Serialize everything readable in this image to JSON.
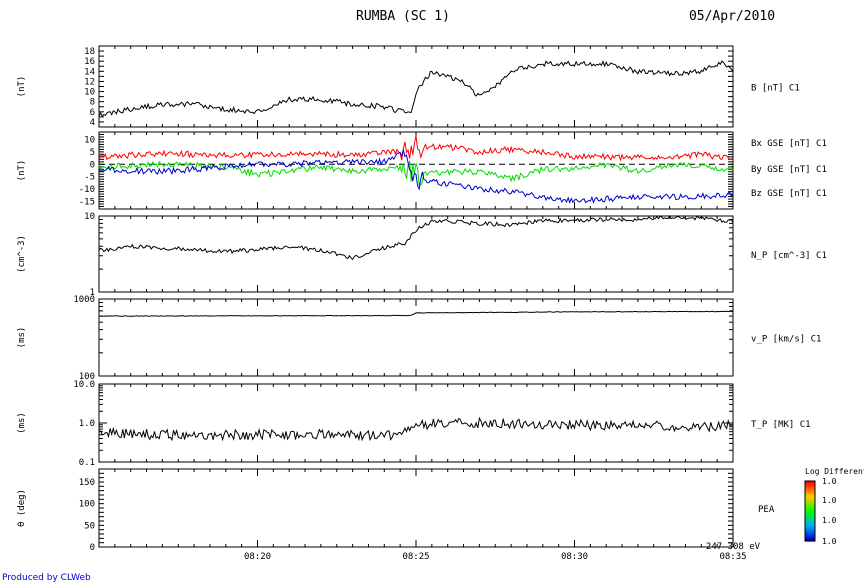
{
  "header": {
    "title": "RUMBA (SC 1)",
    "date": "05/Apr/2010"
  },
  "footer": {
    "produced_by": "Produced by CLWeb"
  },
  "colors": {
    "bx": "#ff0000",
    "by": "#00dd00",
    "bz": "#0000cc",
    "line": "#000000"
  },
  "chart_data": [
    {
      "type": "line",
      "ylabel": "(nT)",
      "series_label": "B [nT] C1",
      "ylim": [
        3,
        19
      ],
      "yticks": [
        "4",
        "6",
        "8",
        "10",
        "12",
        "14",
        "16",
        "18"
      ],
      "x_time_range": [
        "08:15:00",
        "08:35:00"
      ],
      "series": [
        {
          "x": [
            "08:15:00",
            "08:16:00",
            "08:17:00",
            "08:18:00",
            "08:19:00",
            "08:20:00",
            "08:21:00",
            "08:22:00",
            "08:23:00",
            "08:24:00",
            "08:24:50",
            "08:25:00",
            "08:25:30",
            "08:26:00",
            "08:26:30",
            "08:27:00",
            "08:27:30",
            "08:28:00",
            "08:29:00",
            "08:30:00",
            "08:31:00",
            "08:32:00",
            "08:33:00",
            "08:34:00",
            "08:34:40",
            "08:35:00"
          ],
          "y": [
            5.5,
            6.5,
            7.5,
            7.5,
            6.5,
            6,
            8.5,
            8.5,
            7.5,
            7.0,
            5.5,
            10,
            14,
            13,
            12,
            9,
            11,
            14,
            15.5,
            15.5,
            15.5,
            14,
            13.5,
            14,
            16,
            14
          ]
        }
      ]
    },
    {
      "type": "line",
      "ylabel": "(nT)",
      "ylim": [
        -18,
        13
      ],
      "yticks": [
        "10",
        "5",
        "0",
        "-5",
        "-10",
        "-15"
      ],
      "zero_line": true,
      "x_time_range": [
        "08:15:00",
        "08:35:00"
      ],
      "series": [
        {
          "name": "Bx GSE [nT] C1",
          "color": "#ff0000",
          "x": [
            "08:15:00",
            "08:17:00",
            "08:19:00",
            "08:21:00",
            "08:23:00",
            "08:24:40",
            "08:25:00",
            "08:26:00",
            "08:27:00",
            "08:28:00",
            "08:29:00",
            "08:30:00",
            "08:31:00",
            "08:32:00",
            "08:33:00",
            "08:34:00",
            "08:35:00"
          ],
          "y": [
            3,
            4.5,
            3.5,
            4,
            4,
            5,
            7,
            7,
            5,
            6,
            5,
            3,
            3,
            3,
            3,
            4,
            2
          ]
        },
        {
          "name": "By GSE [nT] C1",
          "color": "#00dd00",
          "x": [
            "08:15:00",
            "08:17:00",
            "08:19:00",
            "08:20:00",
            "08:21:00",
            "08:22:00",
            "08:23:00",
            "08:24:40",
            "08:25:00",
            "08:26:00",
            "08:27:00",
            "08:28:00",
            "08:29:00",
            "08:30:00",
            "08:31:00",
            "08:32:00",
            "08:33:00",
            "08:34:00",
            "08:35:00"
          ],
          "y": [
            -1,
            0,
            -1,
            -4,
            -3,
            -1,
            -3,
            -1,
            -4,
            -3,
            -3,
            -6,
            -2,
            -2,
            0,
            -3,
            0,
            -1,
            -2
          ]
        },
        {
          "name": "Bz GSE [nT] C1",
          "color": "#0000cc",
          "x": [
            "08:15:00",
            "08:17:00",
            "08:19:00",
            "08:20:00",
            "08:21:00",
            "08:22:00",
            "08:23:00",
            "08:24:00",
            "08:24:40",
            "08:25:00",
            "08:26:00",
            "08:27:00",
            "08:28:00",
            "08:29:00",
            "08:30:00",
            "08:31:00",
            "08:32:00",
            "08:33:00",
            "08:34:00",
            "08:35:00"
          ],
          "y": [
            -2,
            -3,
            -1,
            0,
            0,
            1,
            1,
            1,
            5,
            -6,
            -8,
            -10,
            -11,
            -13,
            -15,
            -14,
            -13,
            -13,
            -13,
            -12
          ]
        }
      ]
    },
    {
      "type": "line",
      "ylabel": "(cm^-3)",
      "series_label": "N_P [cm^-3] C1",
      "yscale": "log",
      "ylim": [
        1,
        10
      ],
      "yticks": [
        "10",
        "1"
      ],
      "x_time_range": [
        "08:15:00",
        "08:35:00"
      ],
      "series": [
        {
          "x": [
            "08:15:00",
            "08:16:00",
            "08:17:00",
            "08:18:00",
            "08:19:00",
            "08:20:00",
            "08:21:00",
            "08:22:00",
            "08:23:00",
            "08:24:00",
            "08:24:40",
            "08:25:00",
            "08:25:30",
            "08:26:00",
            "08:27:00",
            "08:28:00",
            "08:29:00",
            "08:30:00",
            "08:31:00",
            "08:32:00",
            "08:33:00",
            "08:34:00",
            "08:35:00"
          ],
          "y": [
            3.5,
            4,
            3.8,
            3.6,
            3.4,
            3.6,
            4.0,
            3.5,
            2.8,
            3.8,
            4.4,
            6.5,
            8.5,
            8.5,
            8.0,
            7.6,
            8.6,
            8.8,
            9.0,
            8.9,
            9.8,
            9.2,
            8.5
          ]
        }
      ]
    },
    {
      "type": "line",
      "ylabel": "(ms)",
      "series_label": "v_P [km/s] C1",
      "yscale": "log",
      "ylim": [
        100,
        1000
      ],
      "yticks": [
        "1000",
        "100"
      ],
      "x_time_range": [
        "08:15:00",
        "08:35:00"
      ],
      "series": [
        {
          "x": [
            "08:15:00",
            "08:20:00",
            "08:24:50",
            "08:25:00",
            "08:30:00",
            "08:35:00"
          ],
          "y": [
            600,
            605,
            610,
            660,
            680,
            690
          ]
        }
      ]
    },
    {
      "type": "line",
      "ylabel": "(ms)",
      "series_label": "T_P [MK] C1",
      "yscale": "log",
      "ylim": [
        0.1,
        10
      ],
      "yticks": [
        "10.0",
        "1.0",
        "0.1"
      ],
      "x_time_range": [
        "08:15:00",
        "08:35:00"
      ],
      "series": [
        {
          "x": [
            "08:15:00",
            "08:17:00",
            "08:19:00",
            "08:21:00",
            "08:23:00",
            "08:24:30",
            "08:25:00",
            "08:25:30",
            "08:27:00",
            "08:28:00",
            "08:30:00",
            "08:32:00",
            "08:34:00",
            "08:35:00"
          ],
          "y": [
            0.55,
            0.5,
            0.5,
            0.5,
            0.5,
            0.5,
            0.8,
            1.0,
            1.0,
            0.95,
            0.9,
            0.85,
            0.8,
            0.9
          ]
        }
      ]
    },
    {
      "type": "heatmap",
      "ylabel": "θ (deg)",
      "series_label": "PEA",
      "energy_label": "247-308 eV",
      "ylim": [
        0,
        180
      ],
      "yticks": [
        "150",
        "100",
        "50",
        "0"
      ],
      "xticks": [
        "08:20",
        "08:25",
        "08:30",
        "08:35"
      ],
      "x_time_range": [
        "08:15:00",
        "08:35:00"
      ],
      "colorbar": {
        "title": "Log Differenti",
        "labels": [
          "1.0",
          "1.0",
          "1.0",
          "1.0"
        ]
      }
    }
  ]
}
